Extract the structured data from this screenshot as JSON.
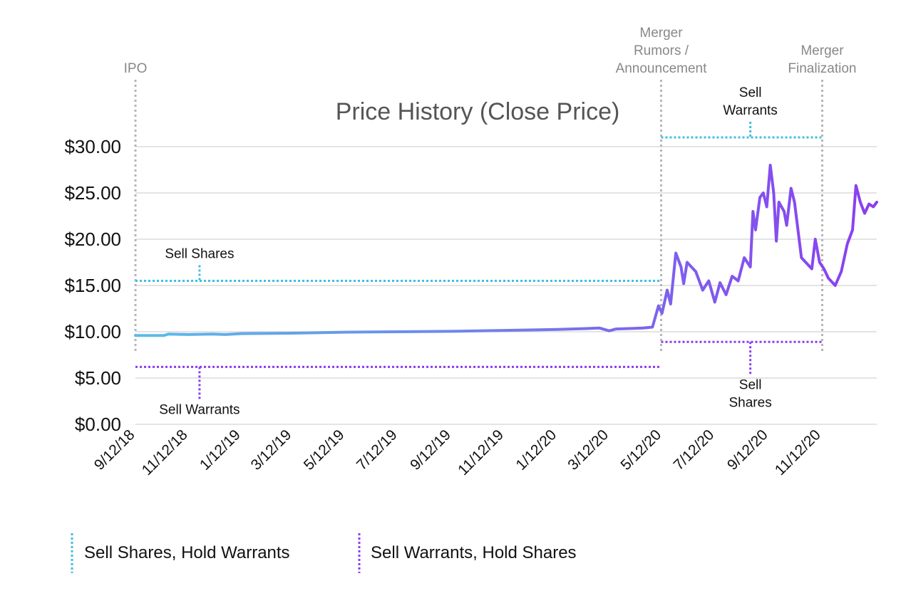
{
  "chart_data": {
    "type": "line",
    "title": "Price History (Close Price)",
    "xlabel": "",
    "ylabel": "",
    "ylim": [
      0,
      30
    ],
    "y_ticks": [
      "$0.00",
      "$5.00",
      "$10.00",
      "$15.00",
      "$20.00",
      "$25.00",
      "$30.00"
    ],
    "y_tick_values": [
      0,
      5,
      10,
      15,
      20,
      25,
      30
    ],
    "x_ticks": [
      "9/12/18",
      "11/12/18",
      "1/12/19",
      "3/12/19",
      "5/12/19",
      "7/12/19",
      "9/12/19",
      "11/12/19",
      "1/12/20",
      "3/12/20",
      "5/12/20",
      "7/12/20",
      "9/12/20",
      "11/12/20"
    ],
    "x_range": [
      "2018-09-12",
      "2021-01-15"
    ],
    "series": [
      {
        "name": "Close Price",
        "color_start": "#5bbde8",
        "color_end": "#8b3df0",
        "points": [
          [
            "2018-09-12",
            9.6
          ],
          [
            "2018-10-15",
            9.6
          ],
          [
            "2018-10-20",
            9.75
          ],
          [
            "2018-11-12",
            9.7
          ],
          [
            "2018-12-10",
            9.75
          ],
          [
            "2018-12-25",
            9.7
          ],
          [
            "2019-01-12",
            9.8
          ],
          [
            "2019-03-12",
            9.85
          ],
          [
            "2019-05-12",
            9.95
          ],
          [
            "2019-07-12",
            10.0
          ],
          [
            "2019-09-12",
            10.05
          ],
          [
            "2019-11-12",
            10.15
          ],
          [
            "2020-01-12",
            10.25
          ],
          [
            "2020-02-15",
            10.35
          ],
          [
            "2020-03-01",
            10.4
          ],
          [
            "2020-03-12",
            10.1
          ],
          [
            "2020-03-20",
            10.3
          ],
          [
            "2020-04-20",
            10.4
          ],
          [
            "2020-05-01",
            10.5
          ],
          [
            "2020-05-08",
            12.8
          ],
          [
            "2020-05-12",
            12.0
          ],
          [
            "2020-05-18",
            14.5
          ],
          [
            "2020-05-22",
            13.0
          ],
          [
            "2020-05-28",
            18.5
          ],
          [
            "2020-06-03",
            17.0
          ],
          [
            "2020-06-06",
            15.2
          ],
          [
            "2020-06-10",
            17.5
          ],
          [
            "2020-06-20",
            16.5
          ],
          [
            "2020-06-28",
            14.5
          ],
          [
            "2020-07-05",
            15.5
          ],
          [
            "2020-07-12",
            13.2
          ],
          [
            "2020-07-18",
            15.3
          ],
          [
            "2020-07-25",
            14.0
          ],
          [
            "2020-08-01",
            16.0
          ],
          [
            "2020-08-08",
            15.5
          ],
          [
            "2020-08-15",
            18.0
          ],
          [
            "2020-08-22",
            17.0
          ],
          [
            "2020-08-25",
            23.0
          ],
          [
            "2020-08-28",
            21.0
          ],
          [
            "2020-09-02",
            24.5
          ],
          [
            "2020-09-06",
            25.0
          ],
          [
            "2020-09-10",
            23.5
          ],
          [
            "2020-09-14",
            28.0
          ],
          [
            "2020-09-18",
            25.0
          ],
          [
            "2020-09-21",
            19.8
          ],
          [
            "2020-09-24",
            24.0
          ],
          [
            "2020-09-30",
            23.0
          ],
          [
            "2020-10-03",
            21.5
          ],
          [
            "2020-10-08",
            25.5
          ],
          [
            "2020-10-12",
            24.0
          ],
          [
            "2020-10-20",
            18.0
          ],
          [
            "2020-10-25",
            17.5
          ],
          [
            "2020-11-01",
            16.8
          ],
          [
            "2020-11-05",
            20.0
          ],
          [
            "2020-11-10",
            17.5
          ],
          [
            "2020-11-15",
            16.8
          ],
          [
            "2020-11-20",
            15.8
          ],
          [
            "2020-11-28",
            15.0
          ],
          [
            "2020-12-05",
            16.5
          ],
          [
            "2020-12-12",
            19.5
          ],
          [
            "2020-12-18",
            21.0
          ],
          [
            "2020-12-22",
            25.8
          ],
          [
            "2020-12-27",
            24.0
          ],
          [
            "2021-01-01",
            22.8
          ],
          [
            "2021-01-06",
            23.8
          ],
          [
            "2021-01-11",
            23.5
          ],
          [
            "2021-01-15",
            24.0
          ]
        ]
      }
    ],
    "events": [
      {
        "label_lines": [
          "IPO"
        ],
        "date": "2018-09-12"
      },
      {
        "label_lines": [
          "Merger",
          "Rumors /",
          "Announcement"
        ],
        "date": "2020-05-11"
      },
      {
        "label_lines": [
          "Merger",
          "Finalization"
        ],
        "date": "2020-11-13"
      }
    ],
    "strategy_lines": [
      {
        "strategy": "hold-shares",
        "start": "2018-09-12",
        "end": "2020-05-11",
        "value": 15.5,
        "color": "#3fbfe0",
        "label_lines": [
          "Sell Shares"
        ],
        "label_position": "above",
        "label_date": "2018-11-25"
      },
      {
        "strategy": "hold-warrants",
        "start": "2018-09-12",
        "end": "2020-05-11",
        "value": 6.2,
        "color": "#8b3df0",
        "label_lines": [
          "Sell Warrants"
        ],
        "label_position": "below",
        "label_date": "2018-11-25"
      },
      {
        "strategy": "hold-shares",
        "start": "2020-05-11",
        "end": "2020-11-13",
        "value": 31.0,
        "color": "#3fbfe0",
        "label_lines": [
          "Sell",
          "Warrants"
        ],
        "label_position": "above",
        "label_date": "2020-08-22"
      },
      {
        "strategy": "hold-warrants",
        "start": "2020-05-11",
        "end": "2020-11-13",
        "value": 8.9,
        "color": "#8b3df0",
        "label_lines": [
          "Sell",
          "Shares"
        ],
        "label_position": "below",
        "label_date": "2020-08-22"
      }
    ],
    "legend": [
      {
        "label": "Sell Shares, Hold Warrants",
        "color": "#3fbfe0"
      },
      {
        "label": "Sell Warrants, Hold Shares",
        "color": "#8b3df0"
      }
    ]
  }
}
